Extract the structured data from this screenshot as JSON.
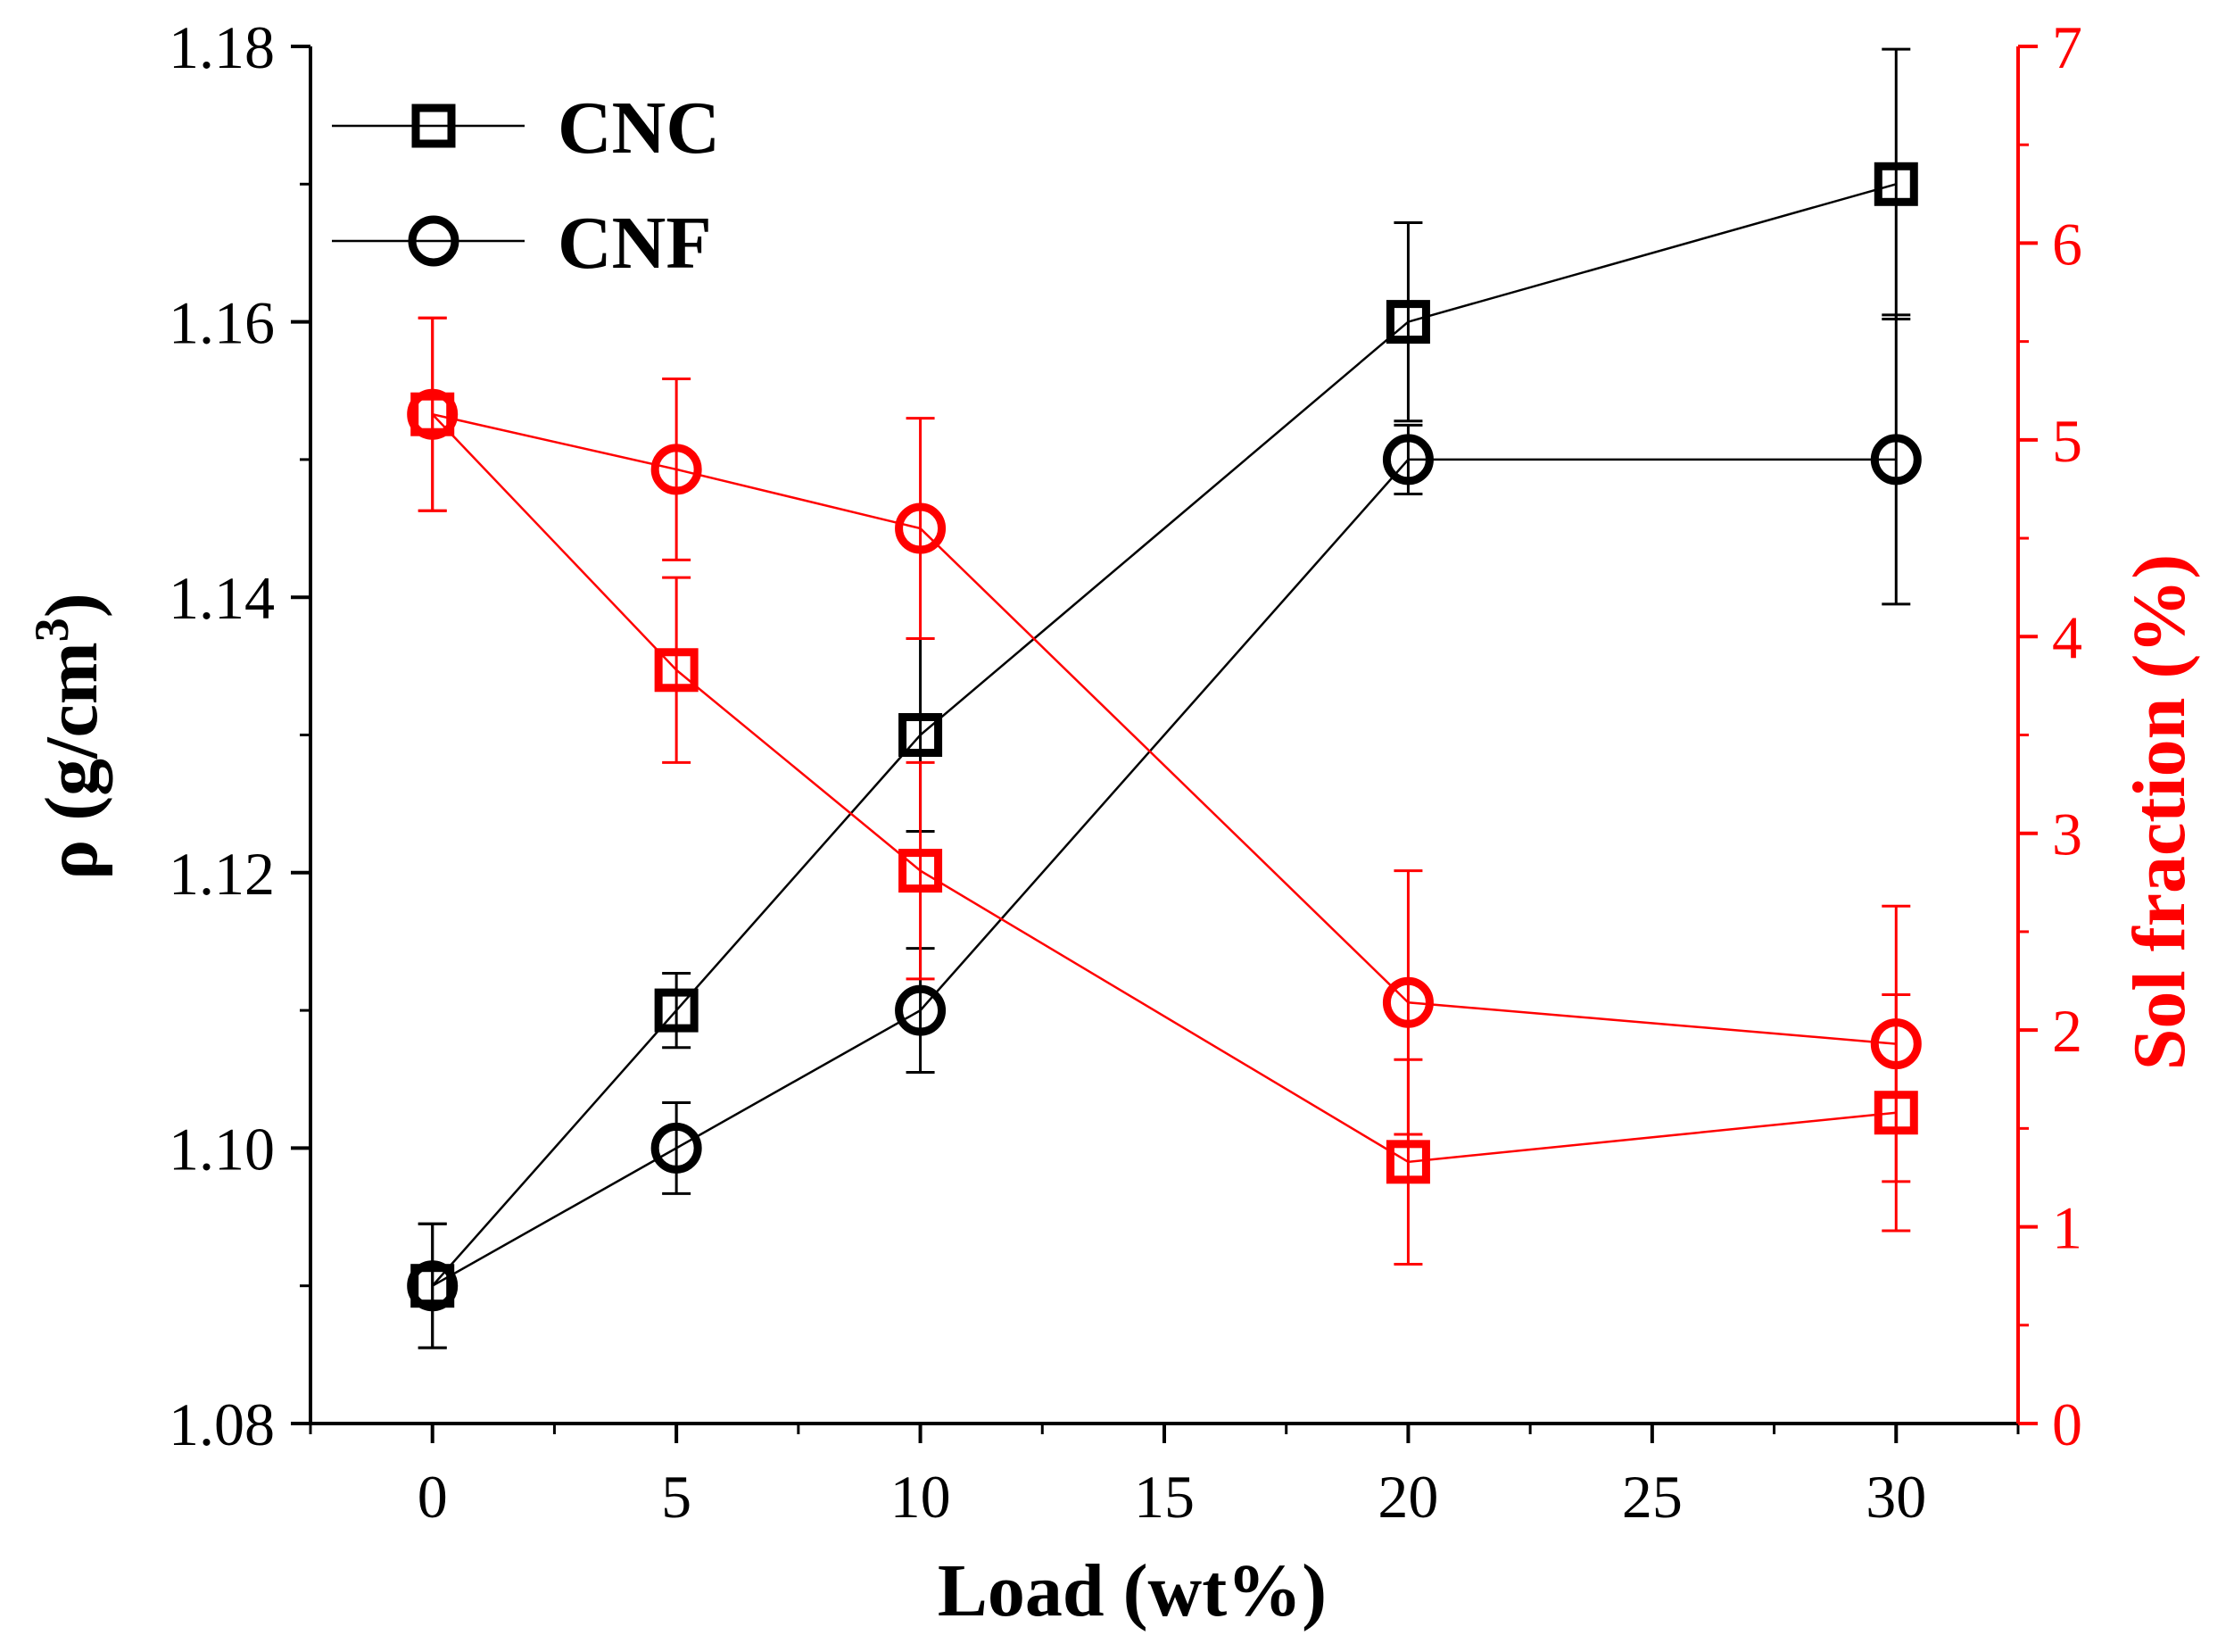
{
  "chart_data": {
    "type": "line",
    "x_axis": {
      "label": "Load (wt%)",
      "range": [
        -2.5,
        32.5
      ],
      "ticks": [
        0,
        5,
        10,
        15,
        20,
        25,
        30
      ],
      "tick_labels": [
        "0",
        "5",
        "10",
        "15",
        "20",
        "25",
        "30"
      ]
    },
    "y_axis_left": {
      "label": "ρ (g/cm",
      "label_superscript": "3",
      "label_suffix": ")",
      "range": [
        1.08,
        1.18
      ],
      "ticks": [
        1.08,
        1.1,
        1.12,
        1.14,
        1.16,
        1.18
      ],
      "tick_labels": [
        "1.08",
        "1.10",
        "1.12",
        "1.14",
        "1.16",
        "1.18"
      ],
      "color": "#000000"
    },
    "y_axis_right": {
      "label": "Sol fraction (%)",
      "range": [
        0,
        7
      ],
      "ticks": [
        0,
        1,
        2,
        3,
        4,
        5,
        6,
        7
      ],
      "tick_labels": [
        "0",
        "1",
        "2",
        "3",
        "4",
        "5",
        "6",
        "7"
      ],
      "color": "#ff0000"
    },
    "series": [
      {
        "name": "CNC",
        "axis": "left",
        "marker": "square",
        "color": "#000000",
        "x": [
          0,
          5,
          10,
          20,
          30
        ],
        "y": [
          1.09,
          1.11,
          1.13,
          1.16,
          1.17
        ],
        "err": [
          0.0045,
          0.0027,
          0.007,
          0.0072,
          0.0098
        ]
      },
      {
        "name": "CNF",
        "axis": "left",
        "marker": "circle",
        "color": "#000000",
        "x": [
          0,
          5,
          10,
          20,
          30
        ],
        "y": [
          1.09,
          1.1,
          1.11,
          1.15,
          1.15
        ],
        "err": [
          0.0045,
          0.0033,
          0.0045,
          0.0025,
          0.0105
        ]
      },
      {
        "name": "CNC sol fraction",
        "axis": "right",
        "marker": "square",
        "color": "#ff0000",
        "x": [
          0,
          5,
          10,
          20,
          30
        ],
        "y": [
          5.13,
          3.83,
          2.81,
          1.33,
          1.58
        ],
        "err": [
          0.49,
          0.47,
          0.55,
          0.52,
          0.6
        ]
      },
      {
        "name": "CNF sol fraction",
        "axis": "right",
        "marker": "circle",
        "color": "#ff0000",
        "x": [
          0,
          5,
          10,
          20,
          30
        ],
        "y": [
          5.13,
          4.85,
          4.55,
          2.14,
          1.93
        ],
        "err": [
          0.49,
          0.46,
          0.56,
          0.67,
          0.7
        ]
      }
    ],
    "legend": {
      "position": "top-left",
      "entries": [
        {
          "label": "CNC",
          "marker": "square"
        },
        {
          "label": "CNF",
          "marker": "circle"
        }
      ]
    }
  }
}
